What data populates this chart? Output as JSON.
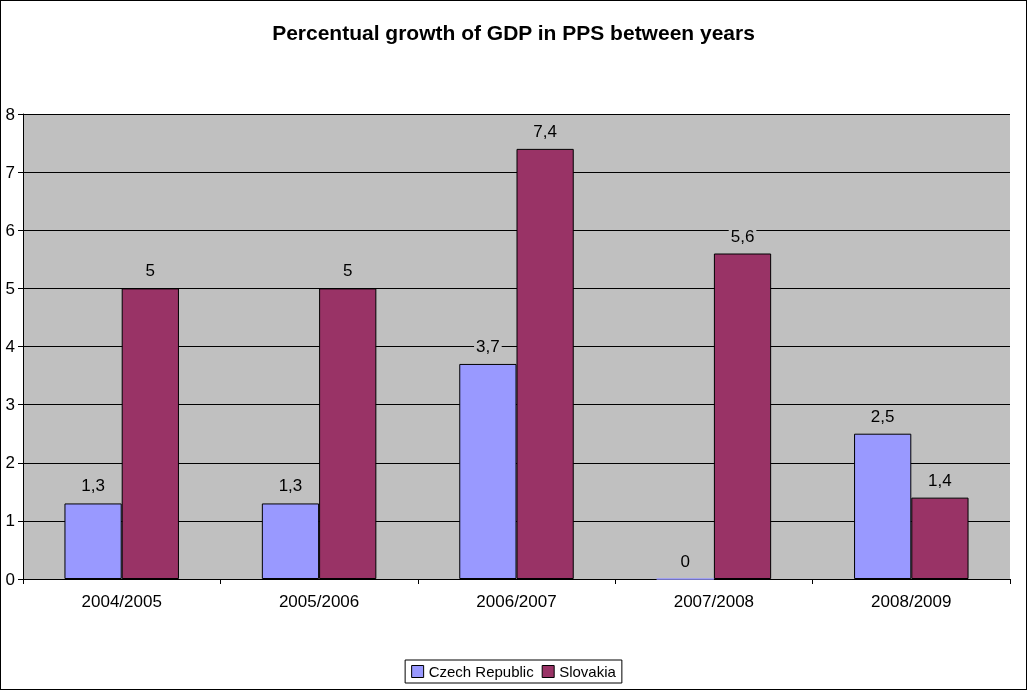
{
  "chart_data": {
    "type": "bar",
    "title": "Percentual growth of GDP in PPS between years",
    "categories": [
      "2004/2005",
      "2005/2006",
      "2006/2007",
      "2007/2008",
      "2008/2009"
    ],
    "series": [
      {
        "name": "Czech Republic",
        "color": "#9999ff",
        "values": [
          1.3,
          1.3,
          3.7,
          0,
          2.5
        ],
        "value_labels": [
          "1,3",
          "1,3",
          "3,7",
          "0",
          "2,5"
        ]
      },
      {
        "name": "Slovakia",
        "color": "#993366",
        "values": [
          5,
          5,
          7.4,
          5.6,
          1.4
        ],
        "value_labels": [
          "5",
          "5",
          "7,4",
          "5,6",
          "1,4"
        ]
      }
    ],
    "ylim": [
      0,
      8
    ],
    "yticks": [
      0,
      1,
      2,
      3,
      4,
      5,
      6,
      7,
      8
    ],
    "grid": "y",
    "legend": "bottom"
  }
}
